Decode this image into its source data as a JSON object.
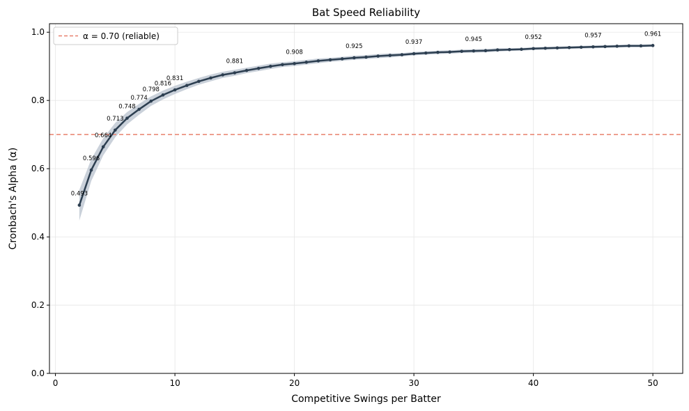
{
  "chart_data": {
    "type": "line",
    "title": "Bat Speed Reliability",
    "xlabel": "Competitive Swings per Batter",
    "ylabel": "Cronbach's Alpha (α)",
    "xlim": [
      -0.5,
      52.5
    ],
    "ylim": [
      0,
      1.025
    ],
    "x_ticks": [
      0,
      10,
      20,
      30,
      40,
      50
    ],
    "y_ticks": [
      0.0,
      0.2,
      0.4,
      0.6,
      0.8,
      1.0
    ],
    "x_tick_labels": [
      "0",
      "10",
      "20",
      "30",
      "40",
      "50"
    ],
    "y_tick_labels": [
      "0.0",
      "0.2",
      "0.4",
      "0.6",
      "0.8",
      "1.0"
    ],
    "grid": true,
    "series": [
      {
        "name": "Cronbach's Alpha",
        "color": "#2c3e50",
        "band_color": "#aeb8c6",
        "x": [
          2,
          3,
          4,
          5,
          6,
          7,
          8,
          9,
          10,
          11,
          12,
          13,
          14,
          15,
          16,
          17,
          18,
          19,
          20,
          21,
          22,
          23,
          24,
          25,
          26,
          27,
          28,
          29,
          30,
          31,
          32,
          33,
          34,
          35,
          36,
          37,
          38,
          39,
          40,
          41,
          42,
          43,
          44,
          45,
          46,
          47,
          48,
          49,
          50
        ],
        "values": [
          0.493,
          0.596,
          0.664,
          0.713,
          0.748,
          0.774,
          0.798,
          0.816,
          0.831,
          0.844,
          0.856,
          0.866,
          0.875,
          0.881,
          0.888,
          0.894,
          0.9,
          0.905,
          0.908,
          0.912,
          0.916,
          0.919,
          0.922,
          0.925,
          0.927,
          0.93,
          0.932,
          0.934,
          0.937,
          0.939,
          0.941,
          0.942,
          0.944,
          0.945,
          0.946,
          0.948,
          0.949,
          0.95,
          0.952,
          0.953,
          0.954,
          0.955,
          0.956,
          0.957,
          0.958,
          0.959,
          0.96,
          0.96,
          0.961
        ],
        "band_halfwidth": [
          0.045,
          0.032,
          0.025,
          0.021,
          0.018,
          0.016,
          0.014,
          0.013,
          0.012,
          0.011,
          0.01,
          0.01,
          0.009,
          0.009,
          0.008,
          0.008,
          0.008,
          0.007,
          0.007,
          0.007,
          0.007,
          0.006,
          0.006,
          0.006,
          0.006,
          0.006,
          0.006,
          0.005,
          0.005,
          0.005,
          0.005,
          0.005,
          0.005,
          0.005,
          0.005,
          0.005,
          0.004,
          0.004,
          0.004,
          0.004,
          0.004,
          0.004,
          0.004,
          0.004,
          0.004,
          0.004,
          0.004,
          0.004,
          0.004
        ]
      }
    ],
    "labeled_points": [
      {
        "x": 2,
        "label": "0.493"
      },
      {
        "x": 3,
        "label": "0.596"
      },
      {
        "x": 4,
        "label": "0.664"
      },
      {
        "x": 5,
        "label": "0.713"
      },
      {
        "x": 6,
        "label": "0.748"
      },
      {
        "x": 7,
        "label": "0.774"
      },
      {
        "x": 8,
        "label": "0.798"
      },
      {
        "x": 9,
        "label": "0.816"
      },
      {
        "x": 10,
        "label": "0.831"
      },
      {
        "x": 15,
        "label": "0.881"
      },
      {
        "x": 20,
        "label": "0.908"
      },
      {
        "x": 25,
        "label": "0.925"
      },
      {
        "x": 30,
        "label": "0.937"
      },
      {
        "x": 35,
        "label": "0.945"
      },
      {
        "x": 40,
        "label": "0.952"
      },
      {
        "x": 45,
        "label": "0.957"
      },
      {
        "x": 50,
        "label": "0.961"
      }
    ],
    "reference_line": {
      "y": 0.7,
      "label": "α = 0.70 (reliable)",
      "color": "#e8806c",
      "style": "dashed"
    },
    "legend": {
      "placement": "top-left",
      "entries": [
        "α = 0.70 (reliable)"
      ]
    }
  }
}
